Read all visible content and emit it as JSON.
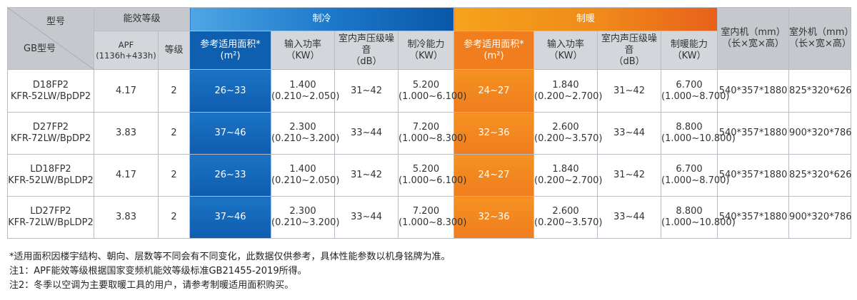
{
  "header": {
    "model_label": "型号",
    "gb_model_label": "GB型号",
    "efficiency_group": "能效等级",
    "apf_label": "APF",
    "apf_condition": "(1136h+433h)",
    "grade_label": "等级",
    "cooling_group": "制冷",
    "heating_group": "制暖",
    "ref_area_label": "参考适用面积*",
    "area_unit": "(m²)",
    "input_power_label": "输入功率",
    "power_unit": "（KW）",
    "noise_label": "室内声压级噪音",
    "noise_unit": "（dB）",
    "cool_capacity_label": "制冷能力",
    "heat_capacity_label": "制暖能力",
    "capacity_unit": "（KW）",
    "indoor_label": "室内机（mm）",
    "outdoor_label": "室外机（mm）",
    "dim_unit": "（长×宽×高）"
  },
  "rows": [
    {
      "model": "D18FP2",
      "gb_model": "KFR-52LW/BpDP2",
      "apf": "4.17",
      "grade": "2",
      "cool_area": "26~33",
      "cool_power": "1.400",
      "cool_power_range": "(0.210~2.050)",
      "cool_noise": "31~42",
      "cool_cap": "5.200",
      "cool_cap_range": "(1.000~6.100)",
      "heat_area": "24~27",
      "heat_power": "1.840",
      "heat_power_range": "(0.200~2.700)",
      "heat_noise": "31~42",
      "heat_cap": "6.700",
      "heat_cap_range": "(1.000~8.700)",
      "indoor": "540*357*1880",
      "outdoor": "825*320*626"
    },
    {
      "model": "D27FP2",
      "gb_model": "KFR-72LW/BpDP2",
      "apf": "3.83",
      "grade": "2",
      "cool_area": "37~46",
      "cool_power": "2.300",
      "cool_power_range": "(0.210~3.200)",
      "cool_noise": "33~44",
      "cool_cap": "7.200",
      "cool_cap_range": "(1.000~8.300)",
      "heat_area": "32~36",
      "heat_power": "2.600",
      "heat_power_range": "(0.200~3.570)",
      "heat_noise": "33~44",
      "heat_cap": "8.800",
      "heat_cap_range": "(1.000~10.800)",
      "indoor": "540*357*1880",
      "outdoor": "900*320*786"
    },
    {
      "model": "LD18FP2",
      "gb_model": "KFR-52LW/BpLDP2",
      "apf": "4.17",
      "grade": "2",
      "cool_area": "26~33",
      "cool_power": "1.400",
      "cool_power_range": "(0.210~2.050)",
      "cool_noise": "31~42",
      "cool_cap": "5.200",
      "cool_cap_range": "(1.000~6.100)",
      "heat_area": "24~27",
      "heat_power": "1.840",
      "heat_power_range": "(0.200~2.700)",
      "heat_noise": "31~42",
      "heat_cap": "6.700",
      "heat_cap_range": "(1.000~8.700)",
      "indoor": "540*357*1880",
      "outdoor": "825*320*626"
    },
    {
      "model": "LD27FP2",
      "gb_model": "KFR-72LW/BpLDP2",
      "apf": "3.83",
      "grade": "2",
      "cool_area": "37~46",
      "cool_power": "2.300",
      "cool_power_range": "(0.210~3.200)",
      "cool_noise": "33~44",
      "cool_cap": "7.200",
      "cool_cap_range": "(1.000~8.300)",
      "heat_area": "32~36",
      "heat_power": "2.600",
      "heat_power_range": "(0.200~3.570)",
      "heat_noise": "33~44",
      "heat_cap": "8.800",
      "heat_cap_range": "(1.000~10.800)",
      "indoor": "540*357*1880",
      "outdoor": "900*320*786"
    }
  ],
  "notes": [
    "*适用面积因楼宇结构、朝向、层数等不同会有不同变化，此数据仅供参考，具体性能参数以机身铭牌为准。",
    "注1：APF能效等级根据国家变频机能效等级标准GB21455-2019所得。",
    "注2：冬季以空调为主要取暖工具的用户，请参考制暖适用面积购买。"
  ]
}
